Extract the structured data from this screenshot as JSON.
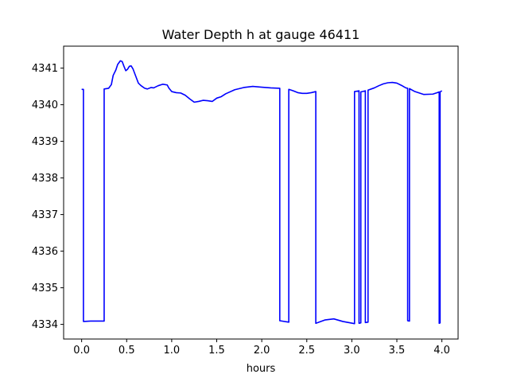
{
  "chart_data": {
    "type": "line",
    "title": "Water Depth h at gauge 46411",
    "xlabel": "hours",
    "ylabel": "",
    "xlim": [
      -0.2,
      4.18
    ],
    "ylim": [
      4333.6,
      4341.6
    ],
    "xticks": [
      0.0,
      0.5,
      1.0,
      1.5,
      2.0,
      2.5,
      3.0,
      3.5,
      4.0
    ],
    "xtick_labels": [
      "0.0",
      "0.5",
      "1.0",
      "1.5",
      "2.0",
      "2.5",
      "3.0",
      "3.5",
      "4.0"
    ],
    "yticks": [
      4334,
      4335,
      4336,
      4337,
      4338,
      4339,
      4340,
      4341
    ],
    "ytick_labels": [
      "4334",
      "4335",
      "4336",
      "4337",
      "4338",
      "4339",
      "4340",
      "4341"
    ],
    "grid": false,
    "series": [
      {
        "color": "#0000ff",
        "x": [
          0.0,
          0.02,
          0.02,
          0.1,
          0.2,
          0.25,
          0.25,
          0.3,
          0.33,
          0.35,
          0.38,
          0.4,
          0.43,
          0.45,
          0.47,
          0.49,
          0.51,
          0.53,
          0.55,
          0.57,
          0.59,
          0.61,
          0.63,
          0.66,
          0.7,
          0.73,
          0.77,
          0.8,
          0.85,
          0.9,
          0.95,
          0.97,
          1.0,
          1.05,
          1.1,
          1.15,
          1.2,
          1.25,
          1.3,
          1.35,
          1.4,
          1.45,
          1.5,
          1.55,
          1.6,
          1.7,
          1.8,
          1.9,
          2.0,
          2.1,
          2.2,
          2.2,
          2.3,
          2.3,
          2.35,
          2.4,
          2.45,
          2.5,
          2.55,
          2.6,
          2.6,
          2.7,
          2.8,
          2.9,
          3.03,
          3.03,
          3.08,
          3.08,
          3.1,
          3.1,
          3.15,
          3.15,
          3.18,
          3.18,
          3.25,
          3.3,
          3.35,
          3.4,
          3.45,
          3.5,
          3.55,
          3.6,
          3.62,
          3.62,
          3.64,
          3.64,
          3.7,
          3.8,
          3.9,
          3.95,
          3.97,
          3.97,
          3.98,
          3.98,
          4.0
        ],
        "y": [
          4340.42,
          4340.42,
          4334.08,
          4334.09,
          4334.09,
          4334.09,
          4340.43,
          4340.45,
          4340.55,
          4340.8,
          4340.95,
          4341.1,
          4341.2,
          4341.18,
          4341.05,
          4340.93,
          4340.97,
          4341.05,
          4341.06,
          4340.98,
          4340.85,
          4340.72,
          4340.59,
          4340.52,
          4340.45,
          4340.43,
          4340.47,
          4340.46,
          4340.52,
          4340.56,
          4340.54,
          4340.45,
          4340.36,
          4340.33,
          4340.32,
          4340.26,
          4340.16,
          4340.07,
          4340.09,
          4340.12,
          4340.11,
          4340.09,
          4340.18,
          4340.22,
          4340.3,
          4340.41,
          4340.47,
          4340.5,
          4340.48,
          4340.46,
          4340.45,
          4334.1,
          4334.06,
          4340.42,
          4340.38,
          4340.33,
          4340.31,
          4340.31,
          4340.33,
          4340.36,
          4334.03,
          4334.12,
          4334.15,
          4334.08,
          4334.02,
          4340.36,
          4340.38,
          4334.03,
          4334.04,
          4340.35,
          4340.38,
          4334.05,
          4334.06,
          4340.4,
          4340.46,
          4340.52,
          4340.57,
          4340.6,
          4340.61,
          4340.59,
          4340.53,
          4340.46,
          4340.45,
          4334.1,
          4334.09,
          4340.44,
          4340.36,
          4340.28,
          4340.29,
          4340.33,
          4340.35,
          4334.03,
          4334.04,
          4340.35,
          4340.38
        ]
      }
    ]
  }
}
